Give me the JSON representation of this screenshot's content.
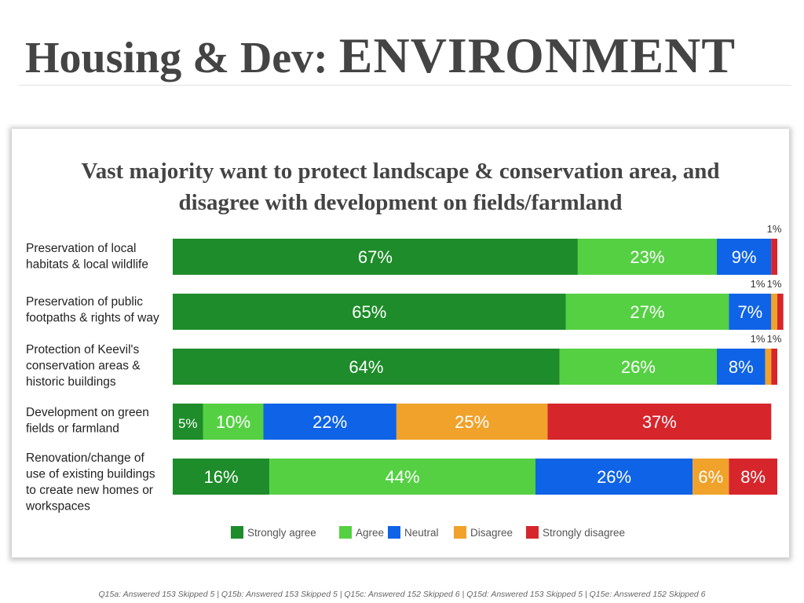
{
  "slide": {
    "title_part1": "Housing & Dev: ",
    "title_part2": "ENVIRONMENT",
    "footer": "Q15a: Answered 153 Skipped 5 | Q15b: Answered 153 Skipped 5 | Q15c: Answered 152 Skipped 6 | Q15d: Answered 153 Skipped 5 | Q15e: Answered 152 Skipped 6"
  },
  "chart_data": {
    "type": "bar",
    "orientation": "horizontal",
    "stacked": true,
    "title": "Vast majority want to protect landscape & conservation area, and disagree with development on fields/farmland",
    "title_lines": [
      "Vast majority want to protect landscape & conservation area, and",
      "disagree with development on fields/farmland"
    ],
    "categories": [
      [
        "Preservation of local",
        "habitats & local wildlife"
      ],
      [
        "Preservation of public",
        "footpaths & rights of way"
      ],
      [
        "Protection of Keevil's",
        "conservation areas &",
        "historic buildings"
      ],
      [
        "Development on green",
        "fields or farmland"
      ],
      [
        "Renovation/change of",
        "use of existing buildings",
        "to create new homes or",
        "workspaces"
      ]
    ],
    "series": [
      {
        "name": "Strongly agree",
        "color": "#1e8c2a",
        "values": [
          67,
          65,
          64,
          5,
          16
        ]
      },
      {
        "name": "Agree",
        "color": "#55d043",
        "values": [
          23,
          27,
          26,
          10,
          44
        ]
      },
      {
        "name": "Neutral",
        "color": "#0f63e6",
        "values": [
          9,
          7,
          8,
          22,
          26
        ]
      },
      {
        "name": "Disagree",
        "color": "#f0a22b",
        "values": [
          0,
          1,
          1,
          25,
          6
        ]
      },
      {
        "name": "Strongly disagree",
        "color": "#d6262c",
        "values": [
          1,
          1,
          1,
          37,
          8
        ]
      }
    ],
    "xlim": [
      0,
      100
    ],
    "unit": "%",
    "legend_position": "bottom",
    "grid": false
  }
}
